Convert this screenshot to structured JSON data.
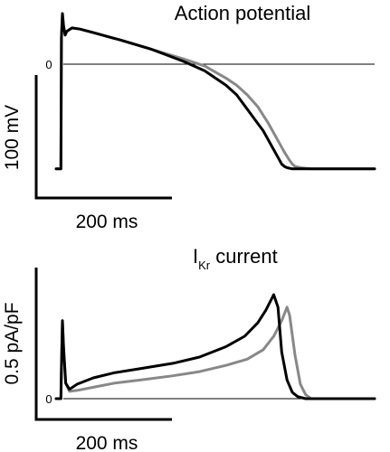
{
  "chart_data": [
    {
      "type": "line",
      "title": "Action potential",
      "zero_label": "0",
      "scale_bars": {
        "x_label": "200 ms",
        "y_label": "100 mV"
      },
      "xlim": [
        0,
        600
      ],
      "ylim": [
        -100,
        40
      ],
      "series": [
        {
          "color": "#000000",
          "x": [
            0,
            9,
            10,
            12,
            14,
            17,
            20,
            30,
            45,
            70,
            120,
            180,
            240,
            280,
            320,
            340,
            360,
            380,
            390,
            400,
            410,
            420,
            425,
            430,
            435,
            445,
            480,
            600
          ],
          "y": [
            -90,
            -90,
            20,
            40,
            30,
            22,
            25,
            28,
            27,
            24,
            18,
            10,
            0,
            -8,
            -20,
            -28,
            -40,
            -52,
            -58,
            -66,
            -74,
            -82,
            -86,
            -88,
            -89,
            -90,
            -90,
            -90
          ]
        },
        {
          "color": "#888888",
          "x": [
            0,
            9,
            10,
            12,
            14,
            17,
            20,
            30,
            45,
            70,
            120,
            180,
            240,
            280,
            320,
            340,
            360,
            380,
            400,
            410,
            420,
            430,
            440,
            445,
            450,
            460,
            480,
            600
          ],
          "y": [
            -90,
            -90,
            20,
            40,
            30,
            22,
            25,
            28,
            27,
            24,
            18,
            10,
            2,
            -4,
            -14,
            -20,
            -28,
            -38,
            -52,
            -60,
            -68,
            -76,
            -83,
            -86,
            -88,
            -89,
            -90,
            -90
          ]
        }
      ]
    },
    {
      "type": "line",
      "title": "I",
      "subscript": "Kr",
      "title_suffix": " current",
      "zero_label": "0",
      "scale_bars": {
        "x_label": "200 ms",
        "y_label": "0.5 pA/pF"
      },
      "xlim": [
        0,
        600
      ],
      "ylim": [
        0,
        1.2
      ],
      "series": [
        {
          "color": "#000000",
          "x": [
            0,
            9,
            10,
            12,
            14,
            18,
            25,
            40,
            70,
            110,
            160,
            220,
            270,
            320,
            355,
            380,
            395,
            410,
            418,
            425,
            435,
            445,
            455,
            470,
            500,
            600
          ],
          "y": [
            0,
            0,
            0.3,
            0.75,
            0.5,
            0.15,
            0.09,
            0.14,
            0.2,
            0.25,
            0.29,
            0.34,
            0.4,
            0.5,
            0.6,
            0.73,
            0.85,
            1.0,
            0.88,
            0.45,
            0.18,
            0.06,
            0.02,
            0,
            0,
            0
          ]
        },
        {
          "color": "#888888",
          "x": [
            0,
            9,
            10,
            12,
            14,
            18,
            25,
            40,
            70,
            110,
            160,
            220,
            270,
            320,
            360,
            390,
            410,
            425,
            435,
            440,
            450,
            460,
            470,
            480,
            500,
            600
          ],
          "y": [
            0,
            0,
            0.3,
            0.75,
            0.5,
            0.15,
            0.07,
            0.08,
            0.11,
            0.15,
            0.18,
            0.22,
            0.26,
            0.32,
            0.38,
            0.47,
            0.6,
            0.75,
            0.88,
            0.8,
            0.42,
            0.14,
            0.04,
            0,
            0,
            0
          ]
        }
      ]
    }
  ]
}
